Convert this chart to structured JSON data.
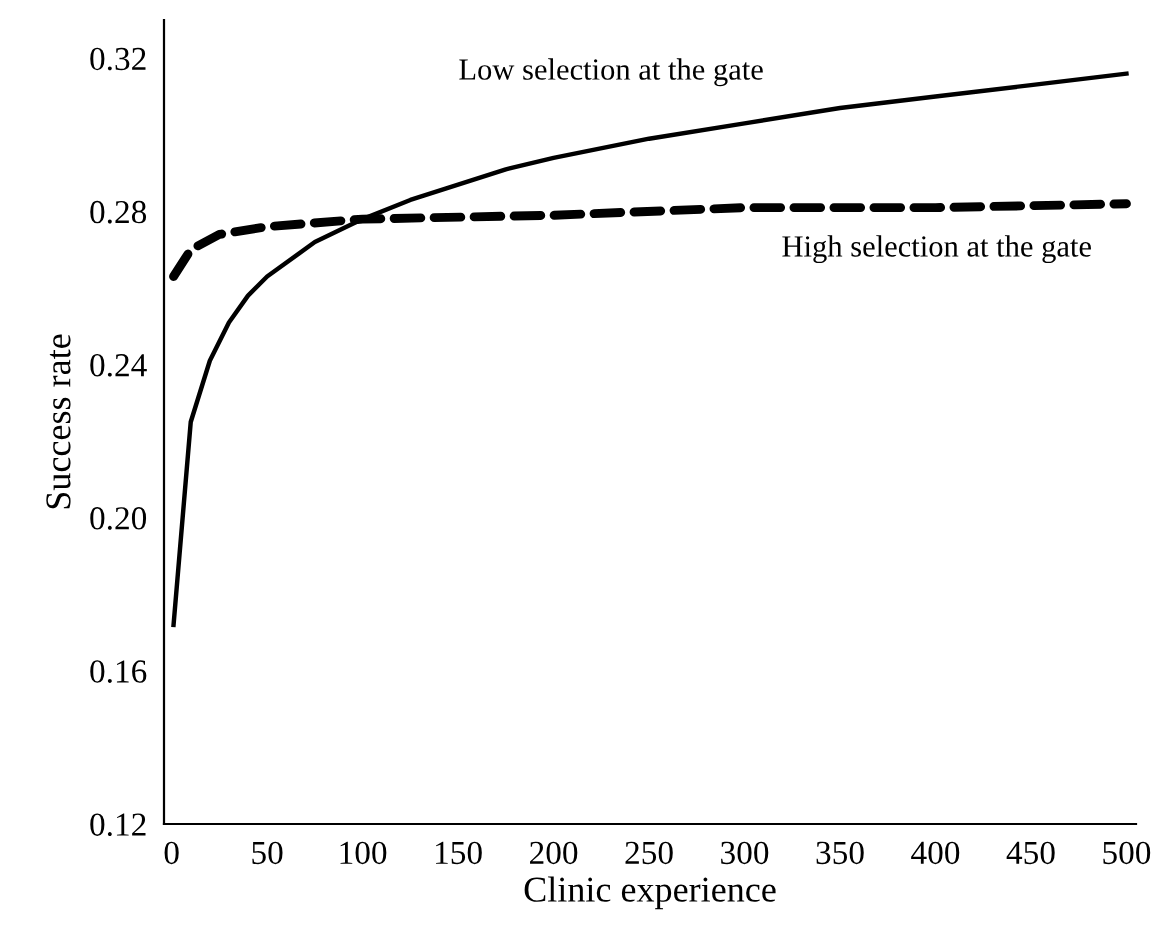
{
  "chart_data": {
    "type": "line",
    "xlabel": "Clinic experience",
    "ylabel": "Success rate",
    "xlim": [
      -4,
      505
    ],
    "ylim": [
      0.12,
      0.33
    ],
    "xticks": [
      0,
      50,
      100,
      150,
      200,
      250,
      300,
      350,
      400,
      450,
      500
    ],
    "yticks": [
      {
        "value": 0.12,
        "label": "0.12"
      },
      {
        "value": 0.16,
        "label": "0.16"
      },
      {
        "value": 0.2,
        "label": "0.20"
      },
      {
        "value": 0.24,
        "label": "0.24"
      },
      {
        "value": 0.28,
        "label": "0.28"
      },
      {
        "value": 0.32,
        "label": "0.32"
      }
    ],
    "grid": false,
    "legend": false,
    "series": [
      {
        "name": "Low selection at the gate",
        "color": "#000000",
        "line_style": "solid",
        "x": [
          1,
          10,
          20,
          30,
          40,
          50,
          75,
          100,
          125,
          150,
          175,
          200,
          250,
          300,
          350,
          400,
          450,
          500
        ],
        "values": [
          0.172,
          0.225,
          0.241,
          0.251,
          0.258,
          0.263,
          0.272,
          0.278,
          0.283,
          0.287,
          0.291,
          0.294,
          0.299,
          0.303,
          0.307,
          0.31,
          0.313,
          0.316
        ]
      },
      {
        "name": "High selection at the gate",
        "color": "#000000",
        "line_style": "dashed",
        "x": [
          1,
          10,
          25,
          50,
          100,
          200,
          300,
          400,
          500
        ],
        "values": [
          0.263,
          0.27,
          0.274,
          0.276,
          0.278,
          0.279,
          0.281,
          0.281,
          0.282
        ]
      }
    ]
  }
}
